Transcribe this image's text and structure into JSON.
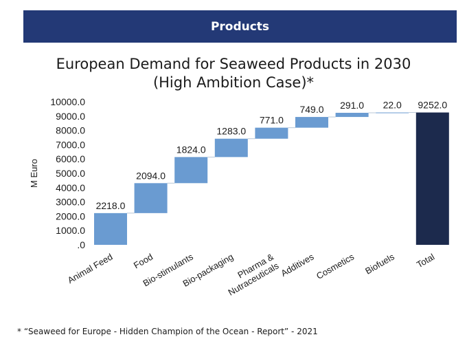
{
  "banner": {
    "label": "Products"
  },
  "title_lines": [
    "European Demand for Seaweed Products in 2030",
    "(High Ambition Case)*"
  ],
  "footnote": "* “Seaweed for Europe - Hidden Champion of the Ocean - Report” - 2021",
  "colors": {
    "banner": "#233976",
    "increase": "#6a9bd1",
    "total": "#1c2a4d",
    "connector": "#b9c7d6"
  },
  "chart_data": {
    "type": "waterfall",
    "title": "European Demand for Seaweed Products in 2030 (High Ambition Case)*",
    "ylabel": "M Euro",
    "xlabel": "",
    "ylim": [
      0,
      10000
    ],
    "yticks": [
      0,
      1000,
      2000,
      3000,
      4000,
      5000,
      6000,
      7000,
      8000,
      9000,
      10000
    ],
    "ytick_labels": [
      ".0",
      "1000.0",
      "2000.0",
      "3000.0",
      "4000.0",
      "5000.0",
      "6000.0",
      "7000.0",
      "8000.0",
      "9000.0",
      "10000.0"
    ],
    "categories": [
      "Animal Feed",
      "Food",
      "Bio-stimulants",
      "Bio-packaging",
      "Pharma & Nutraceuticals",
      "Additives",
      "Cosmetics",
      "Biofuels",
      "Total"
    ],
    "category_lines": [
      [
        "Animal Feed"
      ],
      [
        "Food"
      ],
      [
        "Bio-stimulants"
      ],
      [
        "Bio-packaging"
      ],
      [
        "Pharma &",
        "Nutraceuticals"
      ],
      [
        "Additives"
      ],
      [
        "Cosmetics"
      ],
      [
        "Biofuels"
      ],
      [
        "Total"
      ]
    ],
    "values": [
      2218.0,
      2094.0,
      1824.0,
      1283.0,
      771.0,
      749.0,
      291.0,
      22.0,
      9252.0
    ],
    "value_labels": [
      "2218.0",
      "2094.0",
      "1824.0",
      "1283.0",
      "771.0",
      "749.0",
      "291.0",
      "22.0",
      "9252.0"
    ],
    "is_total": [
      false,
      false,
      false,
      false,
      false,
      false,
      false,
      false,
      true
    ],
    "grid": false,
    "legend": "none"
  }
}
